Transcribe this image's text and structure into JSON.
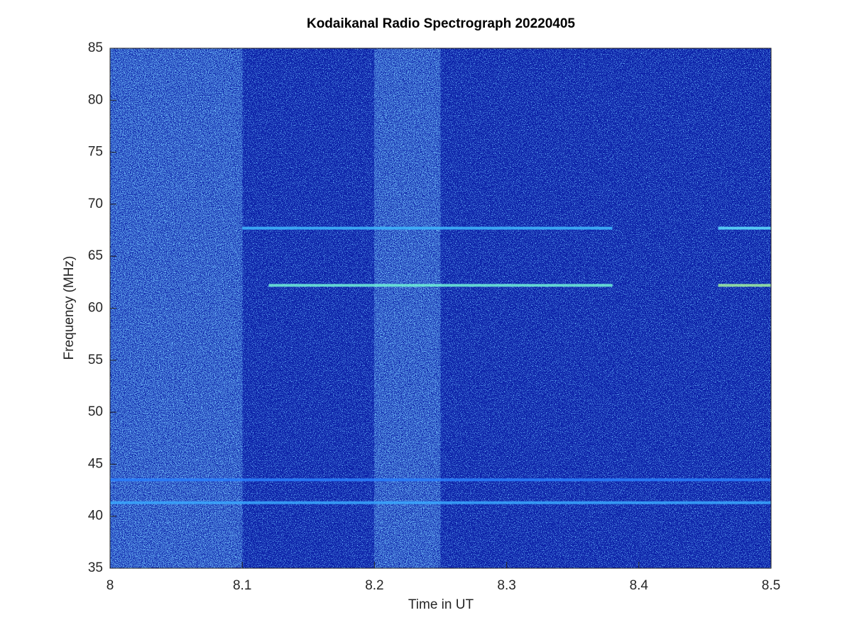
{
  "chart_data": {
    "type": "spectrogram",
    "title": "Kodaikanal Radio Spectrograph  20220405",
    "xlabel": "Time in UT",
    "ylabel": "Frequency (MHz)",
    "xlim": [
      8,
      8.5
    ],
    "xticks": [
      8,
      8.1,
      8.2,
      8.3,
      8.4,
      8.5
    ],
    "ylim": [
      35,
      85
    ],
    "yticks": [
      35,
      40,
      45,
      50,
      55,
      60,
      65,
      70,
      75,
      80,
      85
    ],
    "background": "#0a1ea6",
    "bright_regions": [
      [
        8,
        8.1
      ],
      [
        8.2,
        8.25
      ]
    ],
    "lines": [
      {
        "y": 67.7,
        "x": [
          8.1,
          8.38
        ],
        "color": "#3fb8ff"
      },
      {
        "y": 67.7,
        "x": [
          8.46,
          8.5
        ],
        "color": "#5fe0ff"
      },
      {
        "y": 62.2,
        "x": [
          8.12,
          8.38
        ],
        "color": "#6ff0d8"
      },
      {
        "y": 62.2,
        "x": [
          8.46,
          8.5
        ],
        "color": "#9ff0a0"
      },
      {
        "y": 43.5,
        "x": [
          8,
          8.5
        ],
        "color": "#2a80ff"
      },
      {
        "y": 41.3,
        "x": [
          8,
          8.5
        ],
        "color": "#3aa8ff"
      }
    ]
  }
}
